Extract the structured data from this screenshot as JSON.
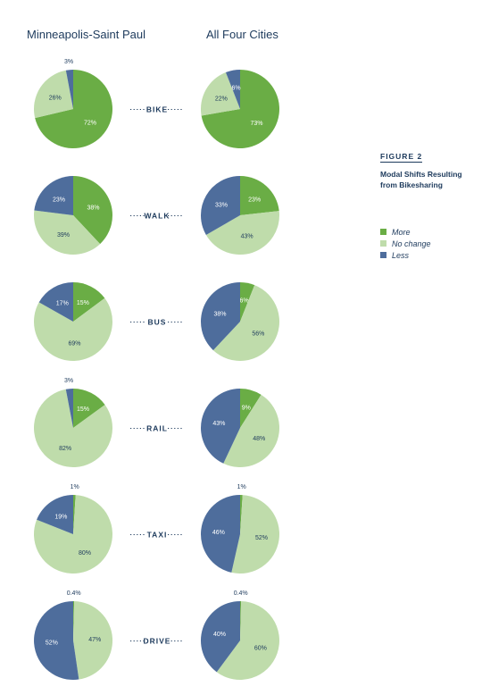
{
  "columns": {
    "left": "Minneapolis-Saint Paul",
    "right": "All Four Cities"
  },
  "figure": {
    "label": "FIGURE 2",
    "caption": "Modal Shifts Resulting from Bikesharing"
  },
  "colors": {
    "more": "#6aad45",
    "no_change": "#bfdcab",
    "less": "#4e6d9c"
  },
  "legend": [
    {
      "key": "more",
      "label": "More"
    },
    {
      "key": "no_change",
      "label": "No change"
    },
    {
      "key": "less",
      "label": "Less"
    }
  ],
  "chart_data": {
    "type": "pie",
    "slice_order": [
      "More",
      "No change",
      "Less"
    ],
    "rows": [
      {
        "mode": "BIKE",
        "minneapolis": {
          "values": [
            72,
            26,
            3
          ],
          "labels": [
            "72%",
            "26%",
            "3%"
          ]
        },
        "all_four": {
          "values": [
            73,
            22,
            6
          ],
          "labels": [
            "73%",
            "22%",
            "6%"
          ]
        }
      },
      {
        "mode": "WALK",
        "minneapolis": {
          "values": [
            38,
            39,
            23
          ],
          "labels": [
            "38%",
            "39%",
            "23%"
          ]
        },
        "all_four": {
          "values": [
            23,
            43,
            33
          ],
          "labels": [
            "23%",
            "43%",
            "33%"
          ]
        }
      },
      {
        "mode": "BUS",
        "minneapolis": {
          "values": [
            15,
            69,
            17
          ],
          "labels": [
            "15%",
            "69%",
            "17%"
          ]
        },
        "all_four": {
          "values": [
            6,
            56,
            38
          ],
          "labels": [
            "6%",
            "56%",
            "38%"
          ]
        }
      },
      {
        "mode": "RAIL",
        "minneapolis": {
          "values": [
            15,
            82,
            3
          ],
          "labels": [
            "15%",
            "82%",
            "3%"
          ]
        },
        "all_four": {
          "values": [
            9,
            48,
            43
          ],
          "labels": [
            "9%",
            "48%",
            "43%"
          ]
        }
      },
      {
        "mode": "TAXI",
        "minneapolis": {
          "values": [
            1,
            80,
            19
          ],
          "labels": [
            "1%",
            "80%",
            "19%"
          ]
        },
        "all_four": {
          "values": [
            1,
            52,
            46
          ],
          "labels": [
            "1%",
            "52%",
            "46%"
          ]
        }
      },
      {
        "mode": "DRIVE",
        "minneapolis": {
          "values": [
            0.4,
            47,
            52
          ],
          "labels": [
            "0.4%",
            "47%",
            "52%"
          ]
        },
        "all_four": {
          "values": [
            0.4,
            60,
            40
          ],
          "labels": [
            "0.4%",
            "60%",
            "40%"
          ]
        }
      }
    ]
  }
}
